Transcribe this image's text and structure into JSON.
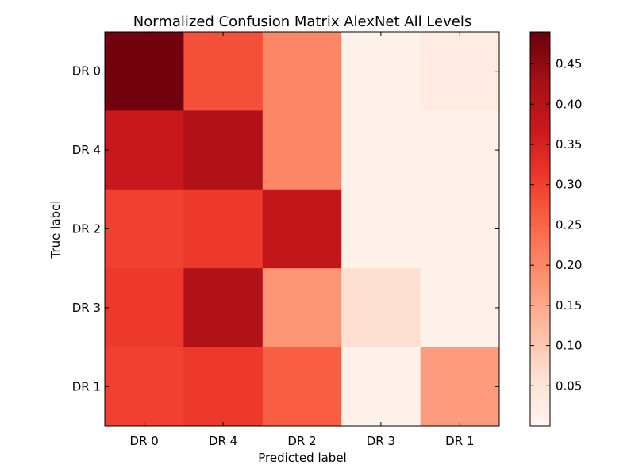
{
  "chart_data": {
    "type": "heatmap",
    "title": "Normalized Confusion Matrix AlexNet All Levels",
    "xlabel": "Predicted label",
    "ylabel": "True label",
    "x_categories": [
      "DR 0",
      "DR 4",
      "DR 2",
      "DR 3",
      "DR 1"
    ],
    "y_categories": [
      "DR 0",
      "DR 4",
      "DR 2",
      "DR 3",
      "DR 1"
    ],
    "values": [
      [
        0.48,
        0.28,
        0.2,
        0.01,
        0.03
      ],
      [
        0.37,
        0.41,
        0.2,
        0.01,
        0.01
      ],
      [
        0.3,
        0.31,
        0.38,
        0.01,
        0.01
      ],
      [
        0.31,
        0.41,
        0.18,
        0.06,
        0.01
      ],
      [
        0.3,
        0.31,
        0.26,
        0.01,
        0.17
      ]
    ],
    "colormap": "Reds",
    "colorbar": {
      "range": [
        0.0,
        0.49
      ],
      "ticks": [
        0.05,
        0.1,
        0.15,
        0.2,
        0.25,
        0.3,
        0.35,
        0.4,
        0.45
      ],
      "tick_labels": [
        "0.05",
        "0.10",
        "0.15",
        "0.20",
        "0.25",
        "0.30",
        "0.35",
        "0.40",
        "0.45"
      ]
    }
  }
}
